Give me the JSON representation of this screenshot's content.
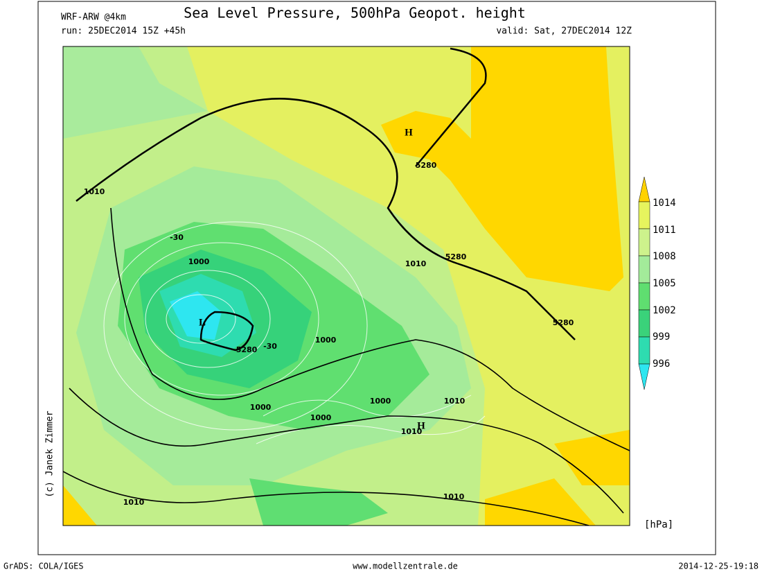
{
  "header": {
    "model": "WRF-ARW @4km",
    "title": "Sea Level Pressure, 500hPa Geopot. height",
    "run": "run: 25DEC2014 15Z +45h",
    "valid": "valid: Sat, 27DEC2014 12Z"
  },
  "colorbar": {
    "labels": [
      "1014",
      "1011",
      "1008",
      "1005",
      "1002",
      "999",
      "996"
    ],
    "unit": "[hPa]"
  },
  "map": {
    "contour_labels": [
      "1010",
      "1000",
      "-30",
      "5280",
      "-30",
      "1000",
      "1010",
      "5280",
      "5280",
      "5280",
      "1000",
      "1000",
      "1000",
      "1010",
      "1010",
      "1010",
      "1010"
    ],
    "centers": [
      "L",
      "H",
      "H"
    ]
  },
  "credit": "(c) Janek Zimmer",
  "footer": {
    "left": "GrADS: COLA/IGES",
    "center": "www.modellzentrale.de",
    "right": "2014-12-25-19:18"
  }
}
